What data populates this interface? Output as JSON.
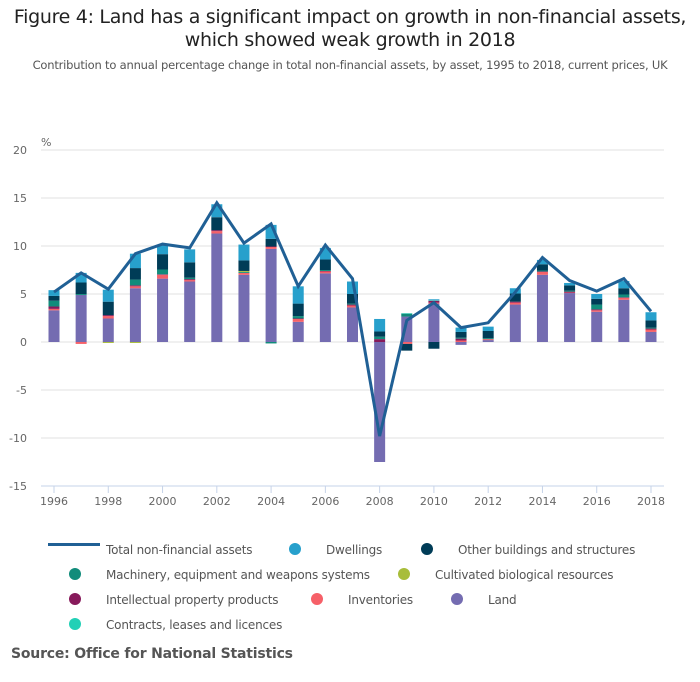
{
  "title_line1": "Figure 4: Land has a significant impact on growth in non-financial assets,",
  "title_line2": "which showed weak growth in 2018",
  "subtitle": "Contribution to annual percentage change in total non-financial assets, by asset, 1995 to 2018, current prices, UK",
  "source": "Source: Office for National Statistics",
  "chart_data": {
    "type": "bar",
    "stacked": true,
    "title": "Figure 4: Land has a significant impact on growth in non-financial assets, which showed weak growth in 2018",
    "subtitle": "Contribution to annual percentage change in total non-financial assets, by asset, 1995 to 2018, current prices, UK",
    "ylabel": "%",
    "xlabel": "",
    "ylim": [
      -15,
      20
    ],
    "yticks": [
      -15,
      -10,
      -5,
      0,
      5,
      10,
      15,
      20
    ],
    "grid": true,
    "legend_position": "bottom",
    "categories": [
      "1996",
      "1997",
      "1998",
      "1999",
      "2000",
      "2001",
      "2002",
      "2003",
      "2004",
      "2005",
      "2006",
      "2007",
      "2008",
      "2009",
      "2010",
      "2011",
      "2012",
      "2013",
      "2014",
      "2015",
      "2016",
      "2017",
      "2018"
    ],
    "xtick_labels": [
      "1996",
      "1998",
      "2000",
      "2002",
      "2004",
      "2006",
      "2008",
      "2010",
      "2012",
      "2014",
      "2016",
      "2018"
    ],
    "series": [
      {
        "name": "Land",
        "color": "#746cb1",
        "values": [
          3.3,
          4.9,
          2.45,
          5.6,
          6.6,
          6.3,
          11.3,
          7.0,
          9.7,
          2.1,
          7.15,
          3.6,
          -12.5,
          2.65,
          4.0,
          -0.3,
          0.2,
          3.9,
          7.0,
          5.1,
          3.15,
          4.4,
          1.05
        ]
      },
      {
        "name": "Inventories",
        "color": "#f66068",
        "values": [
          0.15,
          -0.2,
          0.25,
          0.2,
          0.4,
          0.15,
          0.25,
          0.2,
          0.2,
          0.3,
          0.2,
          0.2,
          0.0,
          -0.2,
          0.1,
          0.15,
          0.1,
          0.2,
          0.3,
          0.05,
          0.15,
          0.2,
          0.25
        ]
      },
      {
        "name": "Intellectual property products",
        "color": "#871a5b",
        "values": [
          0.25,
          0.0,
          0.1,
          0.1,
          0.05,
          0.1,
          0.1,
          0.0,
          0.05,
          0.05,
          0.05,
          0.1,
          0.3,
          0.0,
          0.2,
          0.2,
          0.0,
          0.1,
          0.05,
          0.1,
          0.1,
          0.05,
          0.1
        ]
      },
      {
        "name": "Machinery, equipment and weapons systems",
        "color": "#118c7b",
        "values": [
          0.6,
          0.1,
          0.0,
          0.6,
          0.5,
          0.15,
          0.0,
          0.1,
          -0.15,
          0.25,
          0.1,
          0.1,
          0.25,
          0.3,
          0.0,
          0.1,
          0.1,
          0.0,
          0.1,
          0.1,
          0.5,
          0.3,
          0.1
        ]
      },
      {
        "name": "Cultivated biological resources",
        "color": "#a8bd3a",
        "values": [
          0.0,
          0.0,
          -0.1,
          -0.1,
          0.0,
          0.0,
          0.0,
          0.1,
          0.0,
          0.0,
          0.0,
          0.0,
          0.0,
          0.0,
          0.0,
          0.0,
          0.0,
          0.0,
          0.0,
          0.0,
          0.0,
          0.0,
          0.0
        ]
      },
      {
        "name": "Contracts, leases and licences",
        "color": "#22d0b6",
        "values": [
          0.0,
          0.0,
          0.0,
          0.0,
          0.0,
          0.0,
          0.0,
          0.0,
          0.0,
          0.0,
          0.0,
          0.0,
          0.0,
          0.05,
          0.05,
          0.0,
          0.0,
          0.0,
          0.0,
          0.0,
          0.0,
          0.0,
          0.0
        ]
      },
      {
        "name": "Other buildings and structures",
        "color": "#003c57",
        "values": [
          0.5,
          1.2,
          1.4,
          1.2,
          1.6,
          1.6,
          1.35,
          1.1,
          0.8,
          1.3,
          1.1,
          1.0,
          0.55,
          -0.7,
          -0.7,
          0.6,
          0.75,
          0.85,
          0.65,
          0.55,
          0.6,
          0.65,
          0.75
        ]
      },
      {
        "name": "Dwellings",
        "color": "#27a0cc",
        "values": [
          0.6,
          1.0,
          1.25,
          1.5,
          0.95,
          1.35,
          1.35,
          1.65,
          1.45,
          1.8,
          1.2,
          1.3,
          1.3,
          0.0,
          0.1,
          0.45,
          0.45,
          0.55,
          0.45,
          0.25,
          0.5,
          0.75,
          0.85
        ]
      }
    ],
    "line_series": {
      "name": "Total non-financial assets",
      "color": "#206095",
      "values": [
        5.2,
        7.2,
        5.5,
        9.2,
        10.2,
        9.8,
        14.5,
        10.3,
        12.3,
        5.8,
        10.1,
        6.6,
        -9.8,
        2.25,
        4.1,
        1.5,
        2.0,
        5.2,
        8.8,
        6.4,
        5.3,
        6.6,
        3.2
      ]
    }
  },
  "legend": {
    "items": [
      {
        "label": "Total non-financial assets",
        "type": "line",
        "color": "#206095"
      },
      {
        "label": "Dwellings",
        "type": "dot",
        "color": "#27a0cc"
      },
      {
        "label": "Other buildings and structures",
        "type": "dot",
        "color": "#003c57"
      },
      {
        "label": "Machinery, equipment and weapons systems",
        "type": "dot",
        "color": "#118c7b"
      },
      {
        "label": "Cultivated biological resources",
        "type": "dot",
        "color": "#a8bd3a"
      },
      {
        "label": "Intellectual property products",
        "type": "dot",
        "color": "#871a5b"
      },
      {
        "label": "Inventories",
        "type": "dot",
        "color": "#f66068"
      },
      {
        "label": "Land",
        "type": "dot",
        "color": "#746cb1"
      },
      {
        "label": "Contracts, leases and licences",
        "type": "dot",
        "color": "#22d0b6"
      }
    ]
  }
}
